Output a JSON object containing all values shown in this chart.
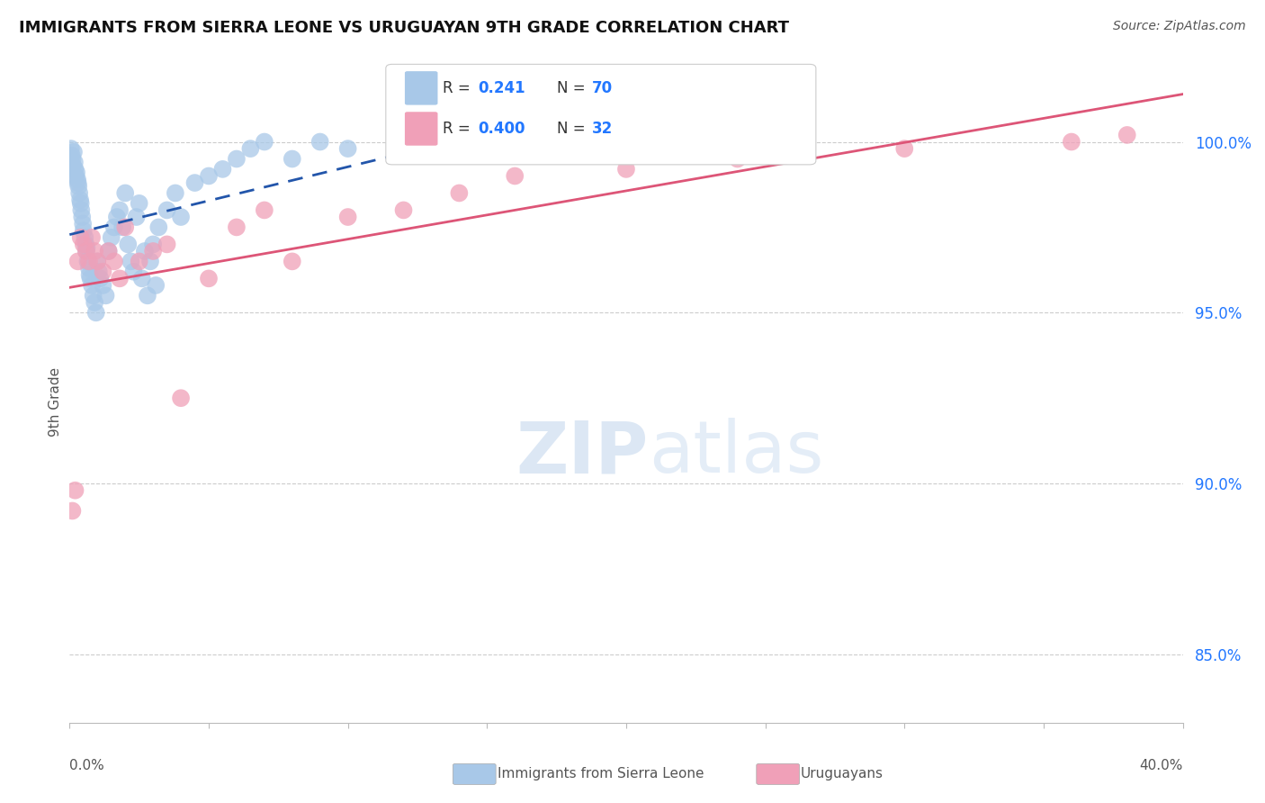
{
  "title": "IMMIGRANTS FROM SIERRA LEONE VS URUGUAYAN 9TH GRADE CORRELATION CHART",
  "source": "Source: ZipAtlas.com",
  "ylabel": "9th Grade",
  "ytick_vals": [
    85.0,
    90.0,
    95.0,
    100.0
  ],
  "ytick_labels": [
    "85.0%",
    "90.0%",
    "95.0%",
    "100.0%"
  ],
  "xlim": [
    0.0,
    40.0
  ],
  "ylim": [
    83.0,
    101.8
  ],
  "blue_R": "0.241",
  "blue_N": "70",
  "pink_R": "0.400",
  "pink_N": "32",
  "blue_color": "#a8c8e8",
  "pink_color": "#f0a0b8",
  "blue_line_color": "#2255aa",
  "pink_line_color": "#dd5577",
  "watermark_zip": "ZIP",
  "watermark_atlas": "atlas",
  "legend_R_color": "#333333",
  "legend_N_color": "#2277ff",
  "blue_scatter_x": [
    0.05,
    0.08,
    0.1,
    0.12,
    0.15,
    0.18,
    0.2,
    0.22,
    0.25,
    0.28,
    0.3,
    0.32,
    0.35,
    0.38,
    0.4,
    0.42,
    0.45,
    0.48,
    0.5,
    0.55,
    0.58,
    0.6,
    0.62,
    0.65,
    0.7,
    0.72,
    0.75,
    0.8,
    0.85,
    0.9,
    0.95,
    1.0,
    1.05,
    1.1,
    1.2,
    1.3,
    1.4,
    1.5,
    1.6,
    1.7,
    1.8,
    1.9,
    2.0,
    2.1,
    2.2,
    2.3,
    2.4,
    2.5,
    2.6,
    2.7,
    2.8,
    2.9,
    3.0,
    3.1,
    3.2,
    3.5,
    3.8,
    4.0,
    4.5,
    5.0,
    5.5,
    6.0,
    6.5,
    7.0,
    8.0,
    9.0,
    10.0,
    12.0,
    14.0,
    16.0
  ],
  "blue_scatter_y": [
    99.8,
    99.6,
    99.5,
    99.3,
    99.7,
    99.4,
    99.2,
    99.0,
    99.1,
    98.9,
    98.8,
    98.7,
    98.5,
    98.3,
    98.2,
    98.0,
    97.8,
    97.6,
    97.4,
    97.2,
    97.0,
    96.8,
    96.9,
    96.5,
    96.3,
    96.1,
    96.0,
    95.8,
    95.5,
    95.3,
    95.0,
    96.5,
    96.2,
    96.0,
    95.8,
    95.5,
    96.8,
    97.2,
    97.5,
    97.8,
    98.0,
    97.5,
    98.5,
    97.0,
    96.5,
    96.2,
    97.8,
    98.2,
    96.0,
    96.8,
    95.5,
    96.5,
    97.0,
    95.8,
    97.5,
    98.0,
    98.5,
    97.8,
    98.8,
    99.0,
    99.2,
    99.5,
    99.8,
    100.0,
    99.5,
    100.0,
    99.8,
    100.0,
    100.2,
    99.8
  ],
  "pink_scatter_x": [
    0.1,
    0.2,
    0.3,
    0.4,
    0.5,
    0.6,
    0.7,
    0.8,
    0.9,
    1.0,
    1.2,
    1.4,
    1.6,
    1.8,
    2.0,
    2.5,
    3.0,
    3.5,
    4.0,
    5.0,
    6.0,
    7.0,
    8.0,
    10.0,
    12.0,
    14.0,
    16.0,
    20.0,
    24.0,
    30.0,
    36.0,
    38.0
  ],
  "pink_scatter_y": [
    89.2,
    89.8,
    96.5,
    97.2,
    97.0,
    96.8,
    96.5,
    97.2,
    96.8,
    96.5,
    96.2,
    96.8,
    96.5,
    96.0,
    97.5,
    96.5,
    96.8,
    97.0,
    92.5,
    96.0,
    97.5,
    98.0,
    96.5,
    97.8,
    98.0,
    98.5,
    99.0,
    99.2,
    99.5,
    99.8,
    100.0,
    100.2
  ]
}
